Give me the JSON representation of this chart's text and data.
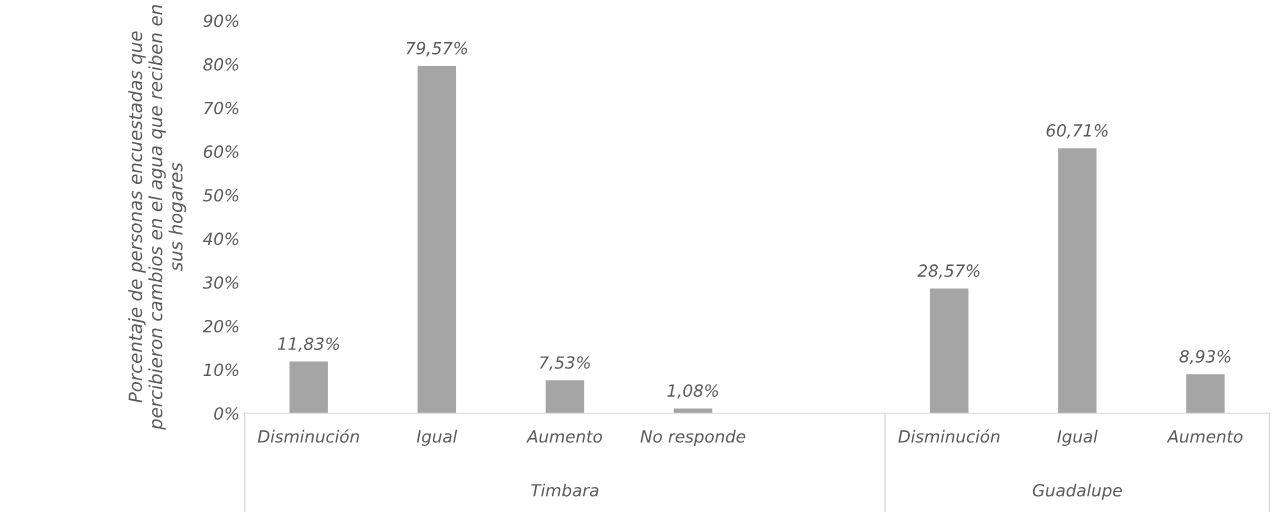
{
  "chart_data": {
    "type": "bar",
    "ylabel": "Porcentaje de personas encuestadas que percibieron cambios en el agua que reciben en sus hogares",
    "categories": [
      "Disminución",
      "Igual",
      "Aumento",
      "No responde",
      null,
      "Disminución",
      "Igual",
      "Aumento"
    ],
    "values": [
      11.83,
      79.57,
      7.53,
      1.08,
      null,
      28.57,
      60.71,
      8.93
    ],
    "value_labels": [
      "11,83%",
      "79,57%",
      "7,53%",
      "1,08%",
      null,
      "28,57%",
      "60,71%",
      "8,93%"
    ],
    "color": "#a5a5a5",
    "ylim": [
      0,
      90
    ],
    "yticks": [
      {
        "value": 0,
        "label": "0%"
      },
      {
        "value": 10,
        "label": "10%"
      },
      {
        "value": 20,
        "label": "20%"
      },
      {
        "value": 30,
        "label": "30%"
      },
      {
        "value": 40,
        "label": "40%"
      },
      {
        "value": 50,
        "label": "50%"
      },
      {
        "value": 60,
        "label": "60%"
      },
      {
        "value": 70,
        "label": "70%"
      },
      {
        "value": 80,
        "label": "80%"
      },
      {
        "value": 90,
        "label": "90%"
      }
    ],
    "annotations": [
      "Timbara",
      "Guadalupe"
    ],
    "grid": false,
    "legend": false
  }
}
